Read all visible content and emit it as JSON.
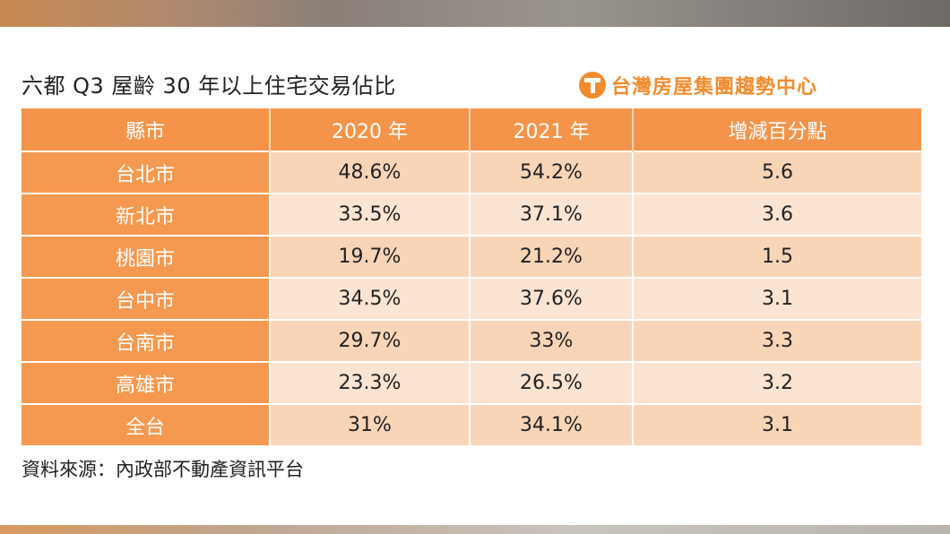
{
  "title": "六都 Q3 屋齡 30 年以上住宅交易佔比",
  "logo": {
    "text": "台灣房屋集團趨勢中心",
    "color": "#f08c2e"
  },
  "table": {
    "headers": [
      "縣市",
      "2020 年",
      "2021 年",
      "增減百分點"
    ],
    "rows": [
      {
        "city": "台北市",
        "y2020": "48.6%",
        "y2021": "54.2%",
        "change": "5.6"
      },
      {
        "city": "新北市",
        "y2020": "33.5%",
        "y2021": "37.1%",
        "change": "3.6"
      },
      {
        "city": "桃園市",
        "y2020": "19.7%",
        "y2021": "21.2%",
        "change": "1.5"
      },
      {
        "city": "台中市",
        "y2020": "34.5%",
        "y2021": "37.6%",
        "change": "3.1"
      },
      {
        "city": "台南市",
        "y2020": "29.7%",
        "y2021": "33%",
        "change": "3.3"
      },
      {
        "city": "高雄市",
        "y2020": "23.3%",
        "y2021": "26.5%",
        "change": "3.2"
      },
      {
        "city": "全台",
        "y2020": "31%",
        "y2021": "34.1%",
        "change": "3.1"
      }
    ],
    "colors": {
      "header": "#f3944a",
      "highlight": "#e3342b"
    }
  },
  "source": "資料來源：內政部不動產資訊平台"
}
